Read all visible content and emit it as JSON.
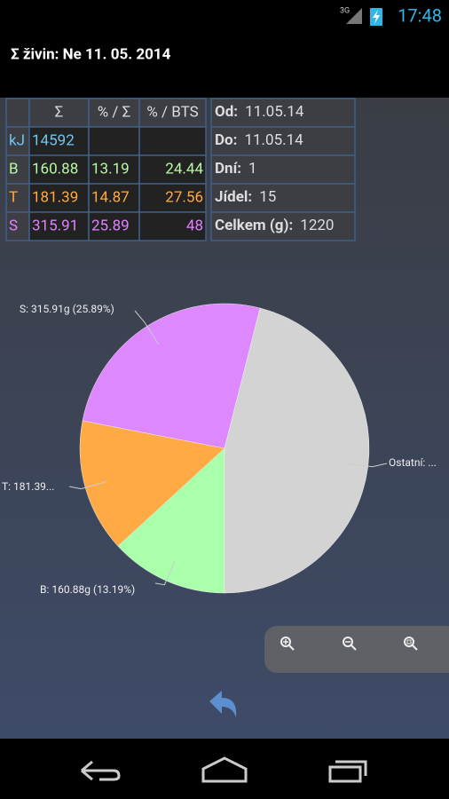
{
  "status_bar": {
    "network": "3G",
    "time": "17:48"
  },
  "header": {
    "title": "Σ živin: Ne 11. 05. 2014"
  },
  "nutrient_table": {
    "columns": [
      "Σ",
      "% / Σ",
      "% / BTS"
    ],
    "rows": [
      {
        "label": "kJ",
        "color": "#6fc6f0",
        "cells": [
          14592
        ]
      },
      {
        "label": "B",
        "color": "#b8f7a8",
        "cells": [
          160.88,
          13.19,
          24.44
        ]
      },
      {
        "label": "T",
        "color": "#ffaa44",
        "cells": [
          181.39,
          14.87,
          27.56
        ]
      },
      {
        "label": "S",
        "color": "#e082ff",
        "cells": [
          315.91,
          25.89,
          48
        ]
      }
    ]
  },
  "summary_table": {
    "rows": [
      [
        "Od:",
        "11.05.14"
      ],
      [
        "Do:",
        "11.05.14"
      ],
      [
        "Dní:",
        1
      ],
      [
        "Jídel:",
        15
      ],
      [
        "Celkem (g):",
        1220
      ]
    ]
  },
  "chart_data": {
    "type": "pie",
    "values": [
      160.88,
      181.39,
      315.91,
      561.82
    ],
    "value_labels": [
      "B:  160.88g (13.19%)",
      "T:  181.39...",
      "S:  315.91g (25.89%)",
      "Ostatní:  ..."
    ],
    "colors": [
      "#aaffaa",
      "#ffaa44",
      "#dd88ff",
      "#d3d3d3"
    ]
  }
}
